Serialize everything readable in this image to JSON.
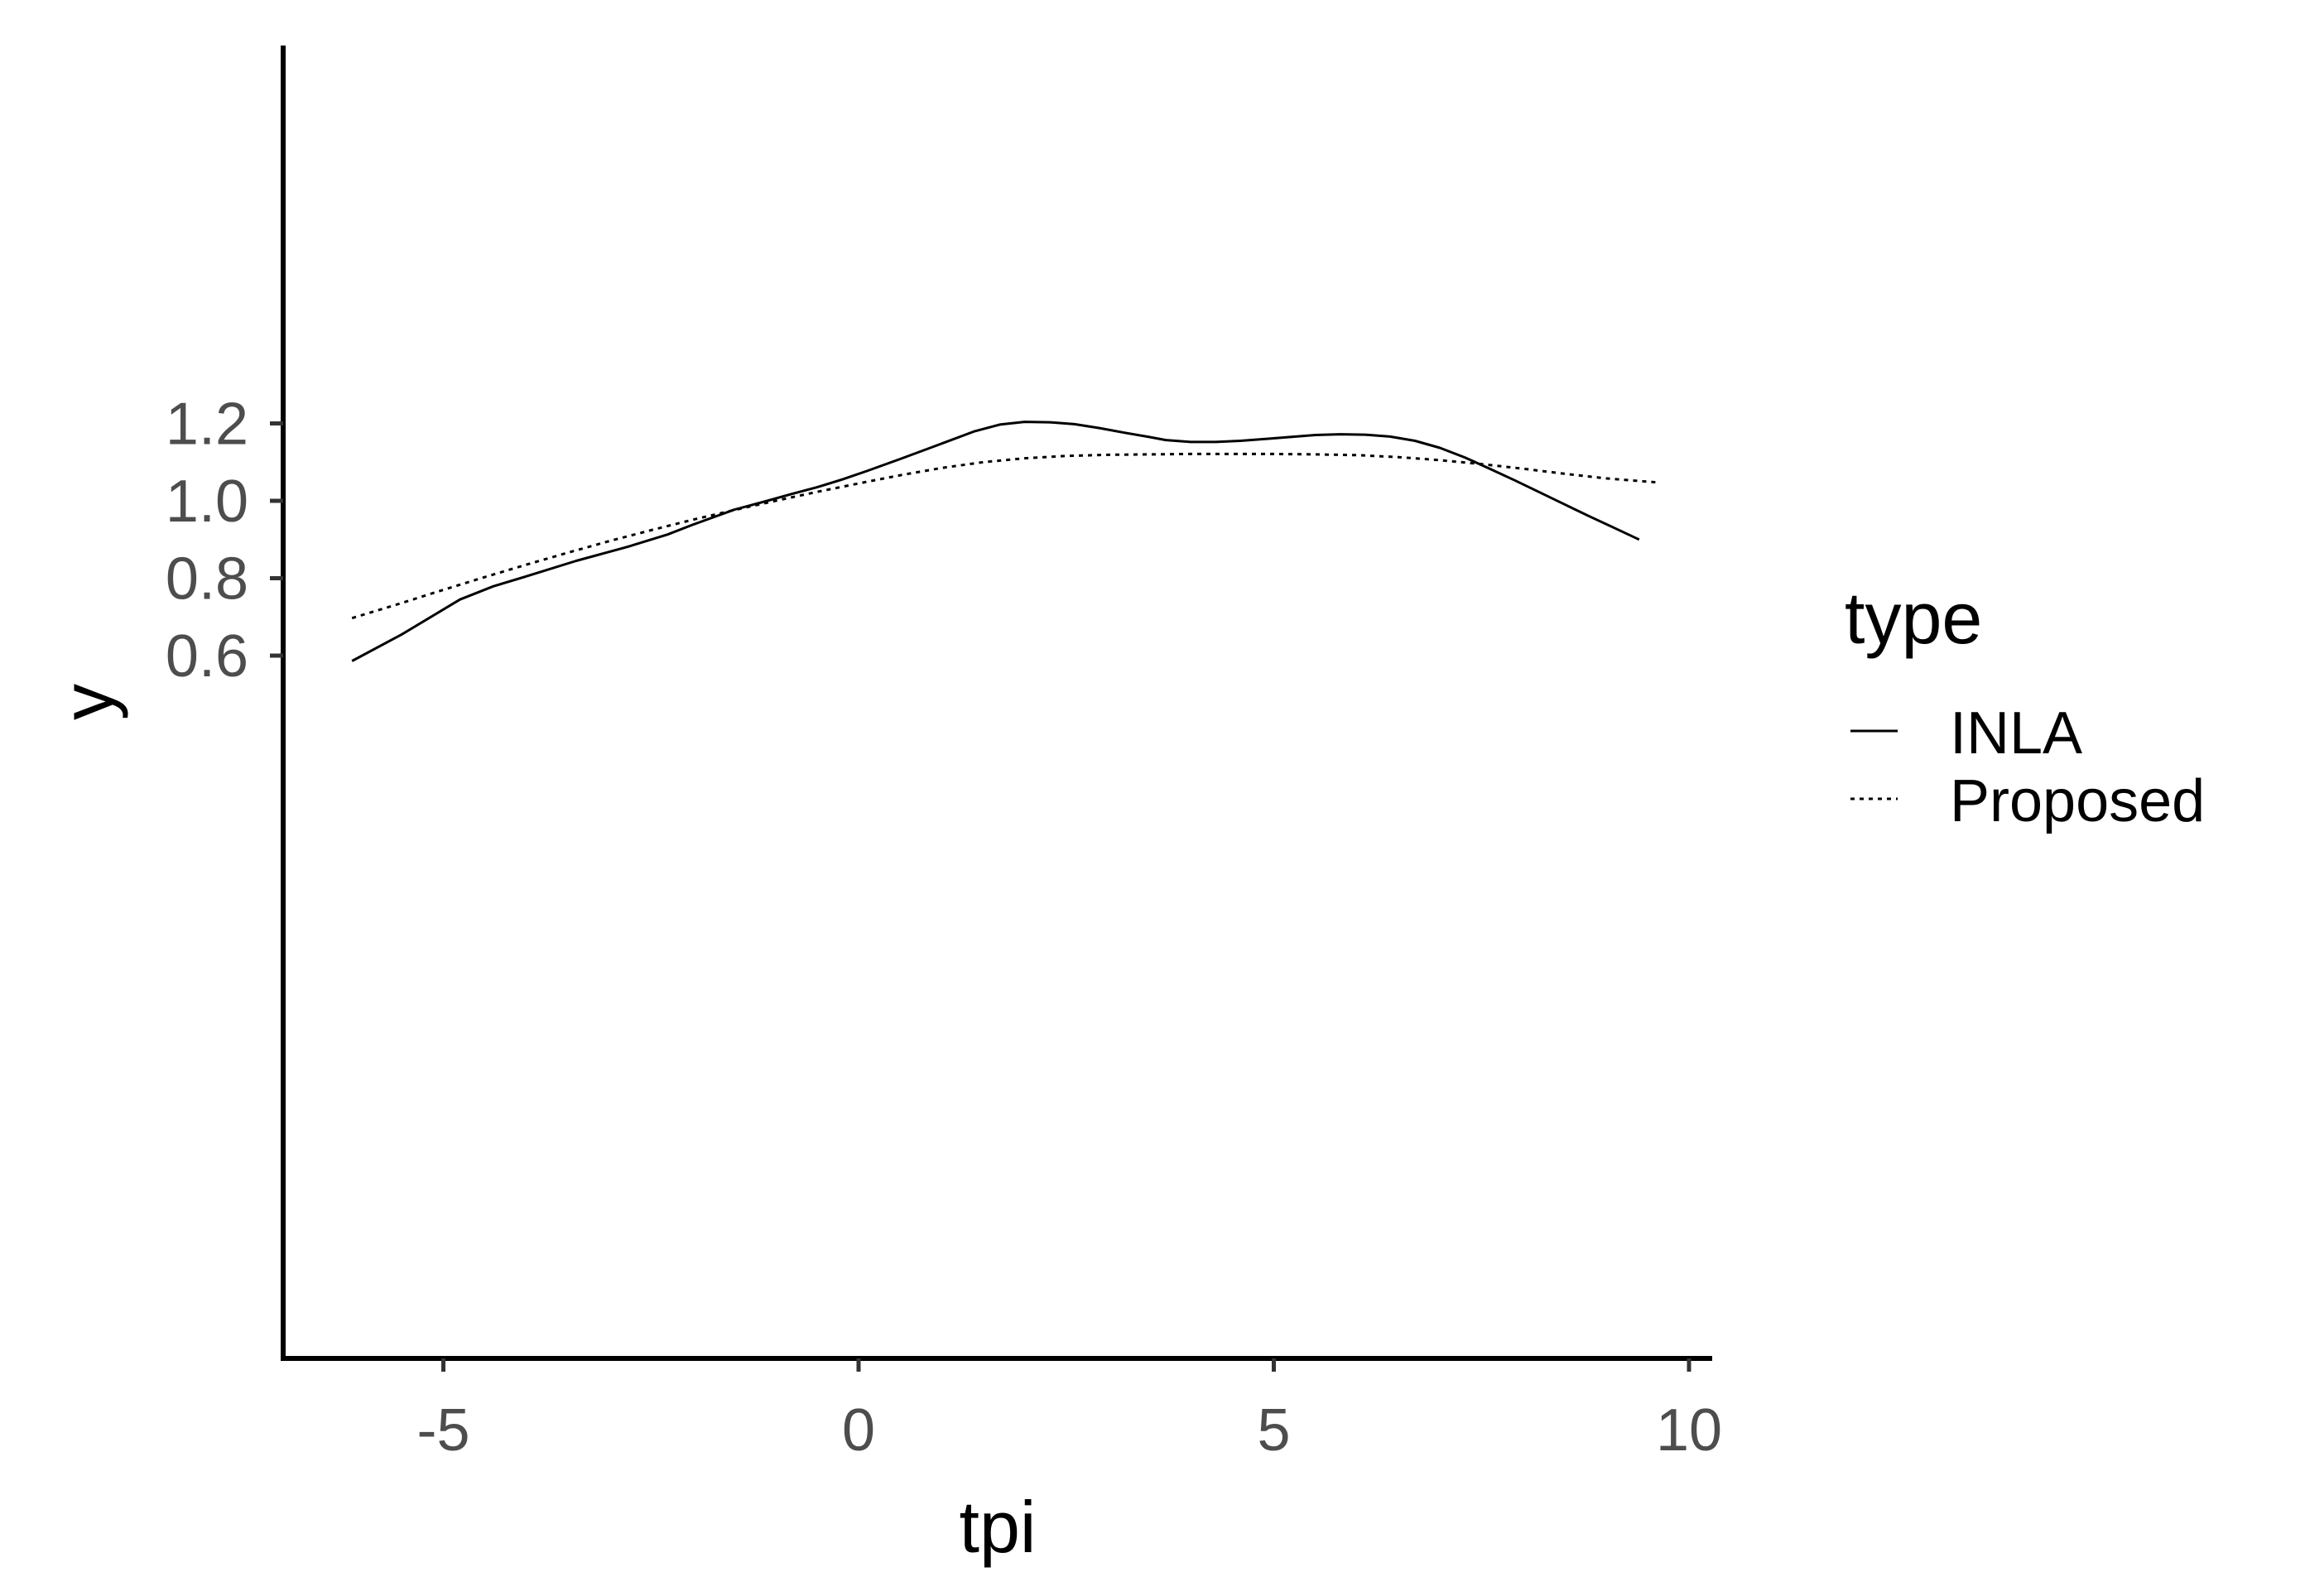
{
  "chart_data": {
    "type": "line",
    "xlabel": "tpi",
    "ylabel": "y",
    "xlim": [
      -6.9,
      10.3
    ],
    "ylim": [
      0.555,
      1.234
    ],
    "x_ticks": [
      -5,
      0,
      5,
      10
    ],
    "y_ticks": [
      0.6,
      0.8,
      1.0,
      1.2
    ],
    "x_tick_labels": [
      "-5",
      "0",
      "5",
      "10"
    ],
    "y_tick_labels": [
      "0.6",
      "0.8",
      "1.0",
      "1.2"
    ],
    "grid": false,
    "legend": {
      "title": "type",
      "position": "right",
      "entries": [
        "INLA",
        "Proposed"
      ]
    },
    "series": [
      {
        "name": "INLA",
        "line_style": "solid",
        "color": "#000000",
        "x": [
          -6.1,
          -5.5,
          -4.8,
          -4.4,
          -4.0,
          -3.4,
          -2.8,
          -2.3,
          -2.0,
          -1.5,
          -1.1,
          -0.8,
          -0.5,
          -0.2,
          0.1,
          0.5,
          0.9,
          1.4,
          1.7,
          2.0,
          2.3,
          2.6,
          2.9,
          3.2,
          3.5,
          3.7,
          4.0,
          4.3,
          4.6,
          4.9,
          5.2,
          5.5,
          5.8,
          6.1,
          6.4,
          6.7,
          7.0,
          7.3,
          7.6,
          7.9,
          8.2,
          8.5,
          8.8,
          9.1,
          9.4
        ],
        "y": [
          0.586,
          0.655,
          0.745,
          0.779,
          0.805,
          0.845,
          0.88,
          0.913,
          0.938,
          0.977,
          1.0,
          1.018,
          1.035,
          1.055,
          1.077,
          1.108,
          1.14,
          1.18,
          1.197,
          1.204,
          1.203,
          1.198,
          1.188,
          1.176,
          1.165,
          1.157,
          1.152,
          1.152,
          1.155,
          1.16,
          1.165,
          1.17,
          1.172,
          1.171,
          1.166,
          1.155,
          1.137,
          1.112,
          1.083,
          1.053,
          1.022,
          0.991,
          0.96,
          0.93,
          0.9
        ]
      },
      {
        "name": "Proposed",
        "line_style": "dotted",
        "color": "#000000",
        "x": [
          -6.1,
          -5.5,
          -5.0,
          -4.5,
          -4.0,
          -3.5,
          -3.0,
          -2.5,
          -2.0,
          -1.5,
          -1.0,
          -0.5,
          0.0,
          0.5,
          1.0,
          1.5,
          2.0,
          2.5,
          3.0,
          3.5,
          4.0,
          4.5,
          5.0,
          5.5,
          6.0,
          6.5,
          7.0,
          7.5,
          8.0,
          8.5,
          9.0,
          9.6
        ],
        "y": [
          0.697,
          0.736,
          0.77,
          0.803,
          0.835,
          0.866,
          0.896,
          0.924,
          0.951,
          0.976,
          1.0,
          1.023,
          1.045,
          1.066,
          1.085,
          1.1,
          1.11,
          1.116,
          1.119,
          1.12,
          1.121,
          1.121,
          1.121,
          1.12,
          1.118,
          1.113,
          1.105,
          1.095,
          1.083,
          1.07,
          1.058,
          1.048
        ]
      }
    ]
  }
}
